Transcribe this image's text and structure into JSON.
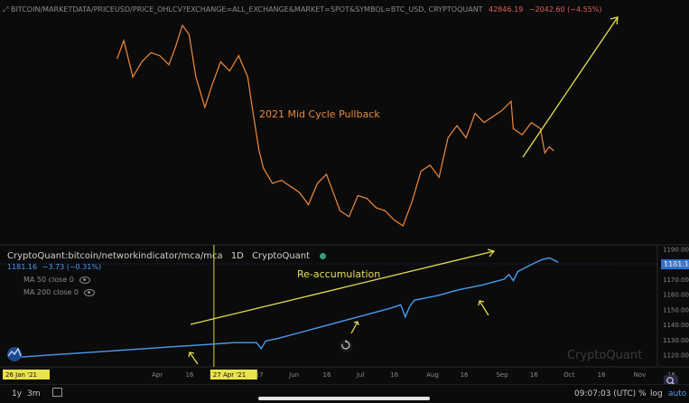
{
  "price_pane": {
    "symbol": "BITCOIN/MARKETDATA/PRICEUSD/PRICE_OHLCV?EXCHANGE=ALL_EXCHANGE&MARKET=SPOT&SYMBOL=BTC_USD, CRYPTOQUANT",
    "last": "42846.19",
    "change": "−2042.60 (−4.55%)",
    "annotation": "2021 Mid Cycle Pullback"
  },
  "mca_pane": {
    "title": "CryptoQuant:bitcoin/networkindicator/mca/mca",
    "interval": "1D",
    "source": "CryptoQuant",
    "value": "1181.16",
    "value_change": "−3.73 (−0.31%)",
    "ma_lines": [
      "MA 50 close 0",
      "MA 200 close 0"
    ],
    "annotation": "Re-accumulation",
    "last_value_badge": "1181.16"
  },
  "watermark": "CryptoQuant",
  "bottom_bar": {
    "ranges": [
      "1y",
      "3m"
    ],
    "time": "09:07:03 (UTC)",
    "scale_options": [
      "%",
      "log",
      "auto"
    ]
  },
  "chart_data": [
    {
      "type": "line",
      "title": "",
      "series": [
        {
          "name": "",
          "color": "#f08a3a",
          "x": [
            "2021-03-15",
            "2021-03-18",
            "2021-03-22",
            "2021-03-26",
            "2021-03-30",
            "2021-04-03",
            "2021-04-07",
            "2021-04-10",
            "2021-04-13",
            "2021-04-16",
            "2021-04-19",
            "2021-04-23",
            "2021-04-26",
            "2021-04-30",
            "2021-05-04",
            "2021-05-08",
            "2021-05-12",
            "2021-05-14",
            "2021-05-17",
            "2021-05-19",
            "2021-05-23",
            "2021-05-27",
            "2021-05-31",
            "2021-06-04",
            "2021-06-08",
            "2021-06-12",
            "2021-06-16",
            "2021-06-20",
            "2021-06-22",
            "2021-06-26",
            "2021-06-30",
            "2021-07-04",
            "2021-07-08",
            "2021-07-12",
            "2021-07-16",
            "2021-07-20",
            "2021-07-24",
            "2021-07-28",
            "2021-08-01",
            "2021-08-05",
            "2021-08-09",
            "2021-08-13",
            "2021-08-17",
            "2021-08-21",
            "2021-08-25",
            "2021-08-29",
            "2021-09-02",
            "2021-09-06",
            "2021-09-07",
            "2021-09-11",
            "2021-09-15",
            "2021-09-19",
            "2021-09-21",
            "2021-09-23",
            "2021-09-25"
          ],
          "values": [
            58000,
            61000,
            55000,
            57500,
            59000,
            58500,
            57000,
            60000,
            63500,
            62000,
            55000,
            50000,
            53500,
            57500,
            56000,
            58500,
            55000,
            50000,
            43000,
            40000,
            37500,
            38000,
            37000,
            36000,
            34000,
            37500,
            39000,
            35000,
            33000,
            32000,
            35500,
            35000,
            33500,
            33000,
            31500,
            30500,
            34500,
            39500,
            40500,
            38500,
            45000,
            47000,
            45000,
            49000,
            47500,
            48500,
            49500,
            51000,
            46500,
            45500,
            47500,
            46500,
            42500,
            43500,
            42846
          ]
        }
      ],
      "xlim": [
        "2021-03-15",
        "2021-09-25"
      ]
    },
    {
      "type": "line",
      "title": "",
      "series": [
        {
          "name": "",
          "color": "#4a9af0",
          "x": [
            "2021-01-26",
            "2021-02-05",
            "2021-02-15",
            "2021-02-25",
            "2021-03-07",
            "2021-03-17",
            "2021-03-27",
            "2021-04-06",
            "2021-04-16",
            "2021-04-26",
            "2021-05-06",
            "2021-05-16",
            "2021-05-18",
            "2021-05-20",
            "2021-05-26",
            "2021-06-05",
            "2021-06-15",
            "2021-06-25",
            "2021-07-05",
            "2021-07-15",
            "2021-07-19",
            "2021-07-21",
            "2021-07-23",
            "2021-07-25",
            "2021-08-04",
            "2021-08-14",
            "2021-08-24",
            "2021-09-03",
            "2021-09-05",
            "2021-09-07",
            "2021-09-09",
            "2021-09-13",
            "2021-09-17",
            "2021-09-20",
            "2021-09-23",
            "2021-09-27"
          ],
          "values": [
            1118,
            1119,
            1120,
            1121,
            1122,
            1123,
            1124,
            1125,
            1126,
            1127,
            1128,
            1128,
            1124,
            1129,
            1131,
            1135,
            1139,
            1143,
            1147,
            1151,
            1153,
            1145,
            1152,
            1156,
            1159,
            1163,
            1166,
            1170,
            1173,
            1169,
            1175,
            1178,
            1181,
            1183,
            1184,
            1181
          ]
        }
      ],
      "xlim": [
        "2021-01-26",
        "2021-11-10"
      ],
      "ylim": [
        1112,
        1192
      ],
      "ytick_labels": [
        "1120.00",
        "1130.00",
        "1140.00",
        "1150.00",
        "1160.00",
        "1170.00",
        "1180.00",
        "1190.00"
      ],
      "yticks": [
        1120,
        1130,
        1140,
        1150,
        1160,
        1170,
        1180,
        1190
      ],
      "xtick_labels": [
        "26 Jan '21",
        "Apr",
        "16",
        "27 Apr '21",
        "17",
        "Jun",
        "16",
        "Jul",
        "16",
        "Aug",
        "16",
        "Sep",
        "16",
        "Oct",
        "16",
        "Nov",
        "16"
      ],
      "xticks": [
        "2021-01-26",
        "2021-04-01",
        "2021-04-16",
        "2021-04-27",
        "2021-05-17",
        "2021-06-01",
        "2021-06-16",
        "2021-07-01",
        "2021-07-16",
        "2021-08-01",
        "2021-08-16",
        "2021-09-01",
        "2021-09-16",
        "2021-10-01",
        "2021-10-16",
        "2021-11-01",
        "2021-11-16"
      ],
      "crosshair_date": "2021-04-27",
      "grid": false,
      "legend": "none"
    }
  ]
}
